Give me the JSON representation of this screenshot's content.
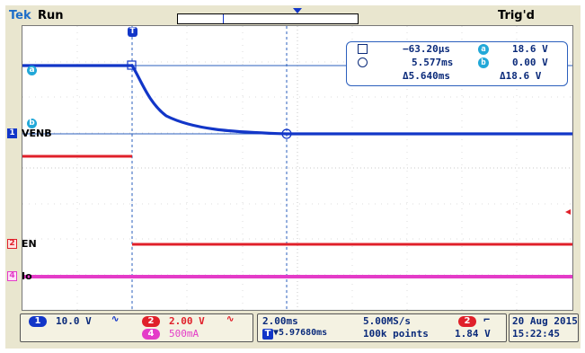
{
  "header": {
    "brand": "Tek",
    "status": "Run",
    "trigger_state": "Trig'd"
  },
  "readout": {
    "cursor1_time": "−63.20μs",
    "cursor2_time": "5.577ms",
    "delta_time": "Δ5.640ms",
    "cursor_a_value": "18.6 V",
    "cursor_b_value": "0.00 V",
    "delta_value": "Δ18.6 V",
    "cursor_a_label": "a",
    "cursor_b_label": "b"
  },
  "channels": {
    "ch1": {
      "num": "1",
      "name": "VENB",
      "scale": "10.0 V",
      "color": "#1236c8"
    },
    "ch2": {
      "num": "2",
      "name": "EN",
      "scale": "2.00 V",
      "color": "#e0202a"
    },
    "ch4": {
      "num": "4",
      "name": "Io",
      "scale": "500mA",
      "color": "#e43cc8"
    }
  },
  "timebase": {
    "scale": "2.00ms",
    "sample_rate": "5.00MS/s",
    "position": "▼5.97680ms",
    "record": "100k points"
  },
  "trigger": {
    "channel": "2",
    "level": "1.84 V"
  },
  "datetime": {
    "date": "20 Aug 2015",
    "time": "15:22:45"
  },
  "markers": {
    "trigger": "T",
    "cursor_a": "a",
    "cursor_b": "b"
  }
}
